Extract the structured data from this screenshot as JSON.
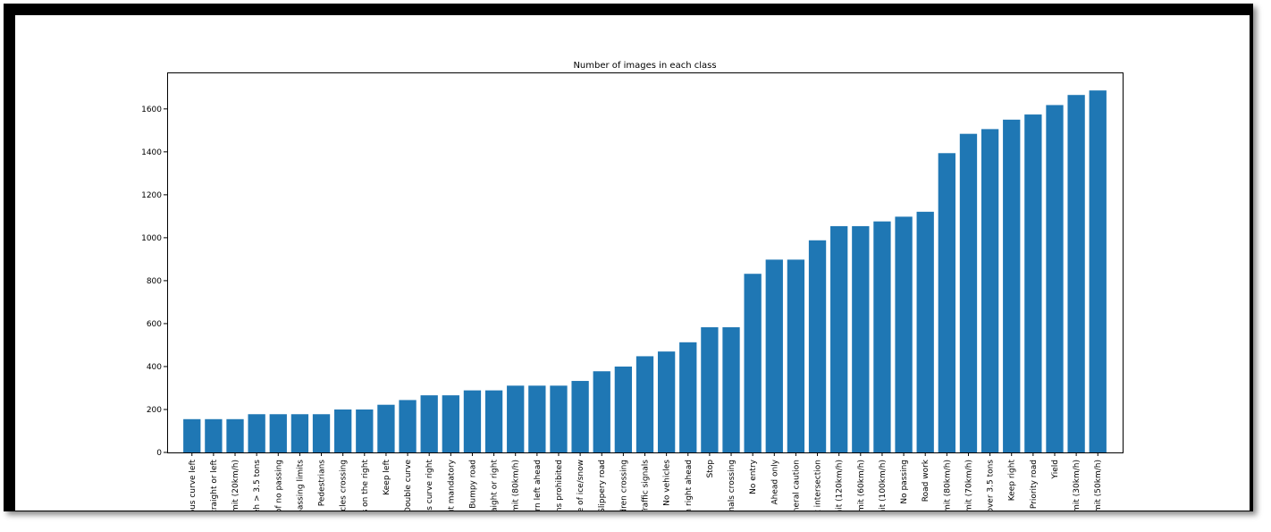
{
  "chart_data": {
    "type": "bar",
    "title": "Number of images in each class",
    "xlabel": "",
    "ylabel": "",
    "ylim": [
      0,
      1770
    ],
    "yticks": [
      0,
      200,
      400,
      600,
      800,
      1000,
      1200,
      1400,
      1600
    ],
    "bar_color": "#1f77b4",
    "grid": false,
    "categories": [
      "rous curve left",
      "straight or left",
      "limit (20km/h)",
      "veh > 3.5 tons",
      "of no passing",
      "passing limits",
      "Pedestrians",
      "ycles crossing",
      "ws on the right",
      "Keep left",
      "Double curve",
      "ous curve right",
      "out mandatory",
      "Bumpy road",
      "raight or right",
      "limit (80km/h)",
      "urn left ahead",
      "ons prohibited",
      "re of ice/snow",
      "Slippery road",
      "ildren crossing",
      "Traffic signals",
      "No vehicles",
      "rn right ahead",
      "Stop",
      "imals crossing",
      "No entry",
      "Ahead only",
      "eneral caution",
      "at intersection",
      "imit (120km/h)",
      "limit (60km/h)",
      "imit (100km/h)",
      "No passing",
      "Road work",
      "limit (80km/h)",
      "limit (70km/h)",
      "o over 3.5 tons",
      "Keep right",
      "Priority road",
      "Yield",
      "limit (30km/h)",
      "limit (50km/h)"
    ],
    "values": [
      155,
      155,
      155,
      178,
      178,
      178,
      178,
      200,
      200,
      222,
      244,
      266,
      266,
      289,
      289,
      311,
      311,
      311,
      333,
      378,
      400,
      448,
      470,
      513,
      583,
      583,
      832,
      898,
      898,
      988,
      1054,
      1054,
      1076,
      1098,
      1121,
      1394,
      1484,
      1506,
      1550,
      1574,
      1618,
      1665,
      1686
    ]
  }
}
